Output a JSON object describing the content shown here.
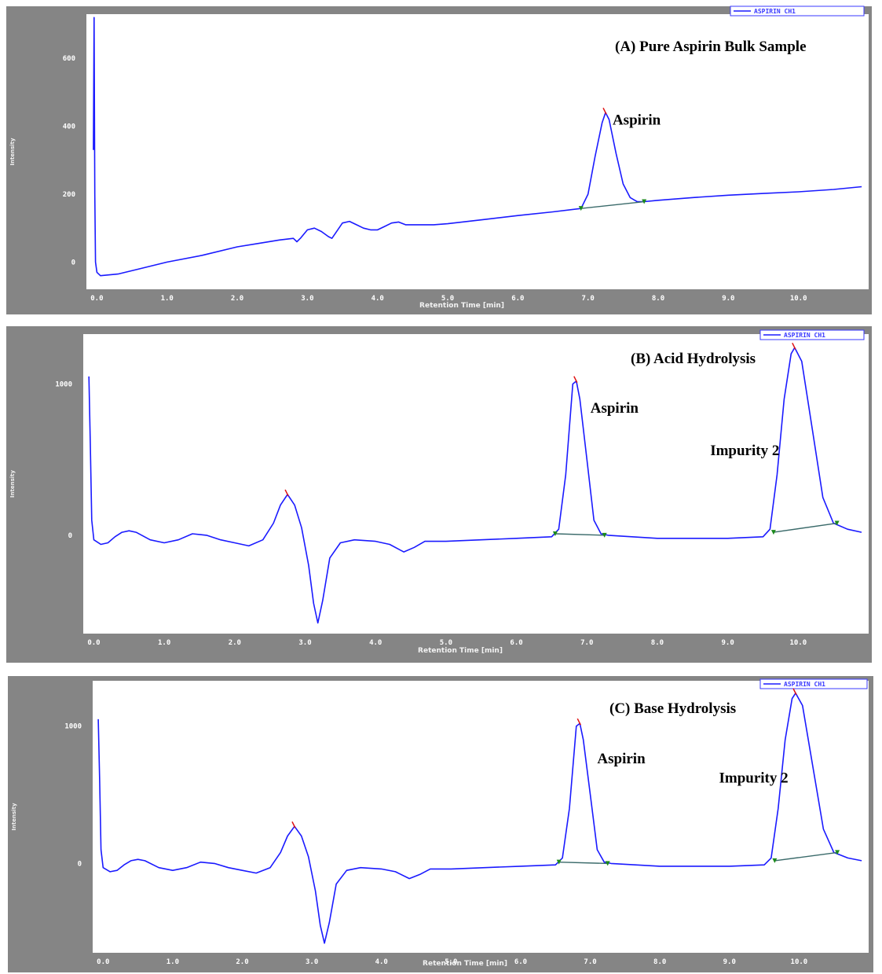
{
  "chart_data": [
    {
      "type": "line",
      "title": "(A) Pure Aspirin Bulk Sample",
      "xlabel": "Retention Time [min]",
      "ylabel": "Intensity",
      "legend": "ASPIRIN CH1",
      "xlim": [
        -0.15,
        11.0
      ],
      "ylim": [
        -80,
        730
      ],
      "x_ticks": [
        "0.0",
        "1.0",
        "2.0",
        "3.0",
        "4.0",
        "5.0",
        "6.0",
        "7.0",
        "8.0",
        "9.0",
        "10.0"
      ],
      "y_ticks": [
        {
          "v": 0,
          "label": "0"
        },
        {
          "v": 200,
          "label": "200"
        },
        {
          "v": 400,
          "label": "400"
        },
        {
          "v": 600,
          "label": "600"
        }
      ],
      "series": [
        {
          "color": "#1a1aff",
          "points": [
            [
              -0.05,
              330
            ],
            [
              -0.04,
              720
            ],
            [
              -0.03,
              200
            ],
            [
              -0.02,
              0
            ],
            [
              0.0,
              -30
            ],
            [
              0.05,
              -40
            ],
            [
              0.3,
              -35
            ],
            [
              0.6,
              -20
            ],
            [
              1.0,
              0
            ],
            [
              1.5,
              20
            ],
            [
              2.0,
              45
            ],
            [
              2.3,
              55
            ],
            [
              2.6,
              65
            ],
            [
              2.8,
              70
            ],
            [
              2.85,
              60
            ],
            [
              2.9,
              70
            ],
            [
              3.0,
              95
            ],
            [
              3.1,
              100
            ],
            [
              3.2,
              90
            ],
            [
              3.3,
              75
            ],
            [
              3.35,
              70
            ],
            [
              3.4,
              85
            ],
            [
              3.5,
              115
            ],
            [
              3.6,
              120
            ],
            [
              3.7,
              110
            ],
            [
              3.8,
              100
            ],
            [
              3.9,
              95
            ],
            [
              4.0,
              95
            ],
            [
              4.1,
              105
            ],
            [
              4.2,
              115
            ],
            [
              4.3,
              118
            ],
            [
              4.4,
              110
            ],
            [
              4.6,
              110
            ],
            [
              4.8,
              110
            ],
            [
              5.0,
              113
            ],
            [
              5.5,
              125
            ],
            [
              6.0,
              137
            ],
            [
              6.5,
              148
            ],
            [
              6.9,
              158
            ],
            [
              7.0,
              200
            ],
            [
              7.1,
              310
            ],
            [
              7.2,
              410
            ],
            [
              7.25,
              440
            ],
            [
              7.3,
              420
            ],
            [
              7.4,
              320
            ],
            [
              7.5,
              230
            ],
            [
              7.6,
              190
            ],
            [
              7.7,
              178
            ],
            [
              7.8,
              178
            ],
            [
              8.0,
              182
            ],
            [
              8.5,
              190
            ],
            [
              9.0,
              197
            ],
            [
              9.5,
              202
            ],
            [
              10.0,
              207
            ],
            [
              10.5,
              214
            ],
            [
              10.9,
              222
            ]
          ]
        }
      ],
      "baselines": [
        [
          [
            6.9,
            158
          ],
          [
            7.8,
            178
          ]
        ]
      ],
      "peak_labels": [
        {
          "text": "Aspirin",
          "x": 7.35,
          "y": 405
        }
      ]
    },
    {
      "type": "line",
      "title": "(B) Acid Hydrolysis",
      "xlabel": "Retention Time [min]",
      "ylabel": "Intensity",
      "legend": "ASPIRIN CH1",
      "xlim": [
        -0.15,
        11.0
      ],
      "ylim": [
        -650,
        1330
      ],
      "x_ticks": [
        "0.0",
        "1.0",
        "2.0",
        "3.0",
        "4.0",
        "5.0",
        "6.0",
        "7.0",
        "8.0",
        "9.0",
        "10.0"
      ],
      "y_ticks": [
        {
          "v": 0,
          "label": "0"
        },
        {
          "v": 1000,
          "label": "1000"
        }
      ],
      "series": [
        {
          "color": "#1a1aff",
          "points": [
            [
              -0.07,
              1050
            ],
            [
              -0.05,
              600
            ],
            [
              -0.03,
              100
            ],
            [
              0.0,
              -30
            ],
            [
              0.1,
              -60
            ],
            [
              0.2,
              -50
            ],
            [
              0.3,
              -10
            ],
            [
              0.4,
              20
            ],
            [
              0.5,
              30
            ],
            [
              0.6,
              20
            ],
            [
              0.8,
              -30
            ],
            [
              1.0,
              -50
            ],
            [
              1.2,
              -30
            ],
            [
              1.4,
              10
            ],
            [
              1.6,
              0
            ],
            [
              1.8,
              -30
            ],
            [
              2.0,
              -50
            ],
            [
              2.2,
              -70
            ],
            [
              2.4,
              -30
            ],
            [
              2.55,
              80
            ],
            [
              2.65,
              200
            ],
            [
              2.75,
              270
            ],
            [
              2.85,
              200
            ],
            [
              2.95,
              50
            ],
            [
              3.05,
              -200
            ],
            [
              3.12,
              -450
            ],
            [
              3.18,
              -580
            ],
            [
              3.25,
              -430
            ],
            [
              3.35,
              -150
            ],
            [
              3.5,
              -50
            ],
            [
              3.7,
              -30
            ],
            [
              4.0,
              -40
            ],
            [
              4.2,
              -60
            ],
            [
              4.4,
              -110
            ],
            [
              4.55,
              -80
            ],
            [
              4.7,
              -40
            ],
            [
              5.0,
              -40
            ],
            [
              6.0,
              -20
            ],
            [
              6.5,
              -10
            ],
            [
              6.6,
              40
            ],
            [
              6.7,
              400
            ],
            [
              6.8,
              1000
            ],
            [
              6.85,
              1020
            ],
            [
              6.9,
              900
            ],
            [
              7.0,
              500
            ],
            [
              7.1,
              100
            ],
            [
              7.2,
              10
            ],
            [
              7.3,
              0
            ],
            [
              8.0,
              -20
            ],
            [
              9.0,
              -20
            ],
            [
              9.5,
              -10
            ],
            [
              9.6,
              40
            ],
            [
              9.7,
              400
            ],
            [
              9.8,
              900
            ],
            [
              9.9,
              1200
            ],
            [
              9.95,
              1240
            ],
            [
              10.05,
              1150
            ],
            [
              10.2,
              700
            ],
            [
              10.35,
              250
            ],
            [
              10.5,
              80
            ],
            [
              10.7,
              40
            ],
            [
              10.9,
              20
            ]
          ]
        }
      ],
      "baselines": [
        [
          [
            6.55,
            10
          ],
          [
            7.25,
            0
          ]
        ],
        [
          [
            9.65,
            20
          ],
          [
            10.55,
            80
          ]
        ]
      ],
      "peak_labels": [
        {
          "text": "Aspirin",
          "x": 7.05,
          "y": 810
        },
        {
          "text": "Impurity 2",
          "x": 8.75,
          "y": 530
        }
      ]
    },
    {
      "type": "line",
      "title": "(C) Base Hydrolysis",
      "xlabel": "Retention Time [min]",
      "ylabel": "Intensity",
      "legend": "ASPIRIN CH1",
      "xlim": [
        -0.15,
        11.0
      ],
      "ylim": [
        -650,
        1330
      ],
      "x_ticks": [
        "0.0",
        "1.0",
        "2.0",
        "3.0",
        "4.0",
        "5.0",
        "6.0",
        "7.0",
        "8.0",
        "9.0",
        "10.0"
      ],
      "y_ticks": [
        {
          "v": 0,
          "label": "0"
        },
        {
          "v": 1000,
          "label": "1000"
        }
      ],
      "series": [
        {
          "color": "#1a1aff",
          "points": [
            [
              -0.07,
              1050
            ],
            [
              -0.05,
              600
            ],
            [
              -0.03,
              100
            ],
            [
              0.0,
              -30
            ],
            [
              0.1,
              -60
            ],
            [
              0.2,
              -50
            ],
            [
              0.3,
              -10
            ],
            [
              0.4,
              20
            ],
            [
              0.5,
              30
            ],
            [
              0.6,
              20
            ],
            [
              0.8,
              -30
            ],
            [
              1.0,
              -50
            ],
            [
              1.2,
              -30
            ],
            [
              1.4,
              10
            ],
            [
              1.6,
              0
            ],
            [
              1.8,
              -30
            ],
            [
              2.0,
              -50
            ],
            [
              2.2,
              -70
            ],
            [
              2.4,
              -30
            ],
            [
              2.55,
              80
            ],
            [
              2.65,
              200
            ],
            [
              2.75,
              270
            ],
            [
              2.85,
              200
            ],
            [
              2.95,
              50
            ],
            [
              3.05,
              -200
            ],
            [
              3.12,
              -450
            ],
            [
              3.18,
              -580
            ],
            [
              3.25,
              -430
            ],
            [
              3.35,
              -150
            ],
            [
              3.5,
              -50
            ],
            [
              3.7,
              -30
            ],
            [
              4.0,
              -40
            ],
            [
              4.2,
              -60
            ],
            [
              4.4,
              -110
            ],
            [
              4.55,
              -80
            ],
            [
              4.7,
              -40
            ],
            [
              5.0,
              -40
            ],
            [
              6.0,
              -20
            ],
            [
              6.5,
              -10
            ],
            [
              6.6,
              40
            ],
            [
              6.7,
              400
            ],
            [
              6.8,
              1000
            ],
            [
              6.85,
              1020
            ],
            [
              6.9,
              900
            ],
            [
              7.0,
              500
            ],
            [
              7.1,
              100
            ],
            [
              7.2,
              10
            ],
            [
              7.3,
              0
            ],
            [
              8.0,
              -20
            ],
            [
              9.0,
              -20
            ],
            [
              9.5,
              -10
            ],
            [
              9.6,
              40
            ],
            [
              9.7,
              400
            ],
            [
              9.8,
              900
            ],
            [
              9.9,
              1200
            ],
            [
              9.95,
              1240
            ],
            [
              10.05,
              1150
            ],
            [
              10.2,
              700
            ],
            [
              10.35,
              250
            ],
            [
              10.5,
              80
            ],
            [
              10.7,
              40
            ],
            [
              10.9,
              20
            ]
          ]
        }
      ],
      "baselines": [
        [
          [
            6.55,
            10
          ],
          [
            7.25,
            0
          ]
        ],
        [
          [
            9.65,
            20
          ],
          [
            10.55,
            80
          ]
        ]
      ],
      "peak_labels": [
        {
          "text": "Aspirin",
          "x": 7.1,
          "y": 730
        },
        {
          "text": "Impurity 2",
          "x": 8.85,
          "y": 590
        }
      ]
    }
  ]
}
